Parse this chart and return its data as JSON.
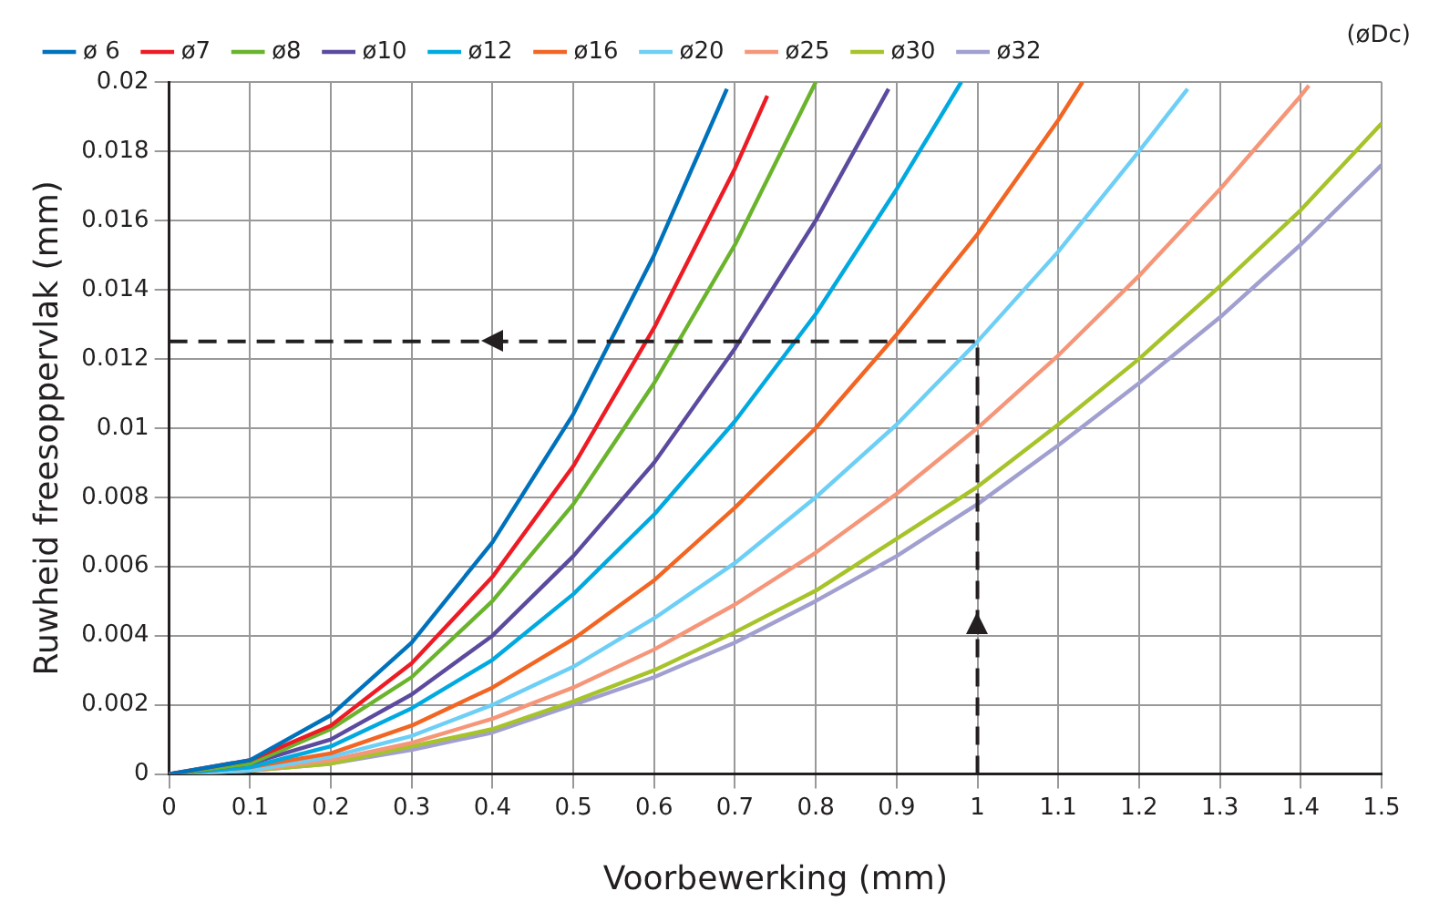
{
  "chart_data": {
    "type": "line",
    "xlabel": "Voorbewerking (mm)",
    "ylabel": "Ruwheid freesoppervlak (mm)",
    "legend_title": "(øDc)",
    "legend": "top",
    "grid": true,
    "marker": "none",
    "line_style": "solid",
    "xlim": [
      0,
      1.5
    ],
    "xticks": [
      0,
      0.1,
      0.2,
      0.3,
      0.4,
      0.5,
      0.6,
      0.7,
      0.8,
      0.9,
      1,
      1.1,
      1.2,
      1.3,
      1.4,
      1.5
    ],
    "ylim": [
      0,
      0.02
    ],
    "yticks": [
      0,
      0.002,
      0.004,
      0.006,
      0.008,
      0.01,
      0.012,
      0.014,
      0.016,
      0.018,
      0.02
    ],
    "series": [
      {
        "name": "ø 6",
        "color": "#0072bc",
        "x": [
          0,
          0.1,
          0.2,
          0.3,
          0.4,
          0.5,
          0.6,
          0.69
        ],
        "values": [
          0,
          0.0004,
          0.0017,
          0.0038,
          0.0067,
          0.0104,
          0.015,
          0.0198
        ]
      },
      {
        "name": "ø7",
        "color": "#ed1c24",
        "x": [
          0,
          0.1,
          0.2,
          0.3,
          0.4,
          0.5,
          0.6,
          0.7,
          0.74
        ],
        "values": [
          0,
          0.0004,
          0.0014,
          0.0032,
          0.0057,
          0.0089,
          0.0129,
          0.0175,
          0.0196
        ]
      },
      {
        "name": "ø8",
        "color": "#6ab42d",
        "x": [
          0,
          0.1,
          0.2,
          0.3,
          0.4,
          0.5,
          0.6,
          0.7,
          0.8
        ],
        "values": [
          0,
          0.0003,
          0.0013,
          0.0028,
          0.005,
          0.0078,
          0.0113,
          0.0153,
          0.02
        ]
      },
      {
        "name": "ø10",
        "color": "#5b4a9e",
        "x": [
          0,
          0.1,
          0.2,
          0.3,
          0.4,
          0.5,
          0.6,
          0.7,
          0.8,
          0.89
        ],
        "values": [
          0,
          0.0003,
          0.001,
          0.0023,
          0.004,
          0.0063,
          0.009,
          0.0123,
          0.016,
          0.0198
        ]
      },
      {
        "name": "ø12",
        "color": "#00a9e0",
        "x": [
          0,
          0.1,
          0.2,
          0.3,
          0.4,
          0.5,
          0.6,
          0.7,
          0.8,
          0.9,
          0.98
        ],
        "values": [
          0,
          0.0002,
          0.0008,
          0.0019,
          0.0033,
          0.0052,
          0.0075,
          0.0102,
          0.0133,
          0.0169,
          0.02
        ]
      },
      {
        "name": "ø16",
        "color": "#f26522",
        "x": [
          0,
          0.1,
          0.2,
          0.3,
          0.4,
          0.5,
          0.6,
          0.7,
          0.8,
          0.9,
          1,
          1.1,
          1.13
        ],
        "values": [
          0,
          0.0002,
          0.0006,
          0.0014,
          0.0025,
          0.0039,
          0.0056,
          0.0077,
          0.01,
          0.0127,
          0.0156,
          0.0189,
          0.02
        ]
      },
      {
        "name": "ø20",
        "color": "#6dcff6",
        "x": [
          0,
          0.1,
          0.2,
          0.3,
          0.4,
          0.5,
          0.6,
          0.7,
          0.8,
          0.9,
          1,
          1.1,
          1.2,
          1.26
        ],
        "values": [
          0,
          0.0001,
          0.0005,
          0.0011,
          0.002,
          0.0031,
          0.0045,
          0.0061,
          0.008,
          0.0101,
          0.0125,
          0.0151,
          0.018,
          0.0198
        ]
      },
      {
        "name": "ø25",
        "color": "#f69679",
        "x": [
          0,
          0.1,
          0.2,
          0.3,
          0.4,
          0.5,
          0.6,
          0.7,
          0.8,
          0.9,
          1,
          1.1,
          1.2,
          1.3,
          1.4,
          1.41
        ],
        "values": [
          0,
          0.0001,
          0.0004,
          0.0009,
          0.0016,
          0.0025,
          0.0036,
          0.0049,
          0.0064,
          0.0081,
          0.01,
          0.0121,
          0.0144,
          0.0169,
          0.0196,
          0.0199
        ]
      },
      {
        "name": "ø30",
        "color": "#a6c32a",
        "x": [
          0,
          0.1,
          0.2,
          0.3,
          0.4,
          0.5,
          0.6,
          0.7,
          0.8,
          0.9,
          1,
          1.1,
          1.2,
          1.3,
          1.4,
          1.5
        ],
        "values": [
          0,
          0.0001,
          0.0003,
          0.0008,
          0.0013,
          0.0021,
          0.003,
          0.0041,
          0.0053,
          0.0068,
          0.0083,
          0.0101,
          0.012,
          0.0141,
          0.0163,
          0.0188
        ]
      },
      {
        "name": "ø32",
        "color": "#a09fd0",
        "x": [
          0,
          0.1,
          0.2,
          0.3,
          0.4,
          0.5,
          0.6,
          0.7,
          0.8,
          0.9,
          1,
          1.1,
          1.2,
          1.3,
          1.4,
          1.5
        ],
        "values": [
          0,
          0.0001,
          0.0003,
          0.0007,
          0.0012,
          0.002,
          0.0028,
          0.0038,
          0.005,
          0.0063,
          0.0078,
          0.0095,
          0.0113,
          0.0132,
          0.0153,
          0.0176
        ]
      }
    ],
    "ref_lines": [
      {
        "axis": "y",
        "value": 0.0125,
        "color": "#231f20",
        "line_style": "dashed"
      },
      {
        "axis": "x",
        "value": 1,
        "color": "#231f20",
        "line_style": "dashed"
      }
    ]
  }
}
